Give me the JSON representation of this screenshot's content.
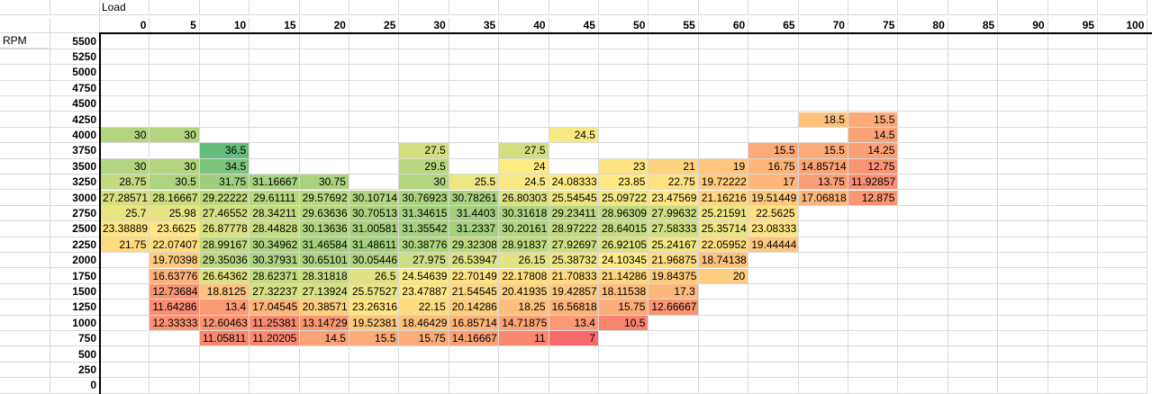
{
  "labels": {
    "load": "Load",
    "rpm": "RPM"
  },
  "load_values": [
    "0",
    "5",
    "10",
    "15",
    "20",
    "25",
    "30",
    "35",
    "40",
    "45",
    "50",
    "55",
    "60",
    "65",
    "70",
    "75",
    "80",
    "85",
    "90",
    "95",
    "100"
  ],
  "rpm_values": [
    "5500",
    "5250",
    "5000",
    "4750",
    "4500",
    "4250",
    "4000",
    "3750",
    "3500",
    "3250",
    "3000",
    "2750",
    "2500",
    "2250",
    "2000",
    "1750",
    "1500",
    "1250",
    "1000",
    "750",
    "500",
    "250",
    "0"
  ],
  "table": {
    "4250": {
      "70": "18.5",
      "75": "15.5"
    },
    "4000": {
      "0": "30",
      "5": "30",
      "45": "24.5",
      "75": "14.5"
    },
    "3750": {
      "10": "36.5",
      "30": "27.5",
      "40": "27.5",
      "65": "15.5",
      "70": "15.5",
      "75": "14.25"
    },
    "3500": {
      "0": "30",
      "5": "30",
      "10": "34.5",
      "30": "29.5",
      "40": "24",
      "50": "23",
      "55": "21",
      "60": "19",
      "65": "16.75",
      "70": "14.85714",
      "75": "12.75"
    },
    "3250": {
      "0": "28.75",
      "5": "30.5",
      "10": "31.75",
      "15": "31.16667",
      "20": "30.75",
      "30": "30",
      "35": "25.5",
      "40": "24.5",
      "45": "24.08333",
      "50": "23.85",
      "55": "22.75",
      "60": "19.72222",
      "65": "17",
      "70": "13.75",
      "75": "11.92857"
    },
    "3000": {
      "0": "27.28571",
      "5": "28.16667",
      "10": "29.22222",
      "15": "29.61111",
      "20": "29.57692",
      "25": "30.10714",
      "30": "30.76923",
      "35": "30.78261",
      "40": "26.80303",
      "45": "25.54545",
      "50": "25.09722",
      "55": "23.47569",
      "60": "21.16216",
      "65": "19.51449",
      "70": "17.06818",
      "75": "12.875"
    },
    "2750": {
      "0": "25.7",
      "5": "25.98",
      "10": "27.46552",
      "15": "28.34211",
      "20": "29.63636",
      "25": "30.70513",
      "30": "31.34615",
      "35": "31.4403",
      "40": "30.31618",
      "45": "29.23411",
      "50": "28.96309",
      "55": "27.99632",
      "60": "25.21591",
      "65": "22.5625"
    },
    "2500": {
      "0": "23.38889",
      "5": "23.6625",
      "10": "26.87778",
      "15": "28.44828",
      "20": "30.13636",
      "25": "31.00581",
      "30": "31.35542",
      "35": "31.2337",
      "40": "30.20161",
      "45": "28.97222",
      "50": "28.64015",
      "55": "27.58333",
      "60": "25.35714",
      "65": "23.08333"
    },
    "2250": {
      "0": "21.75",
      "5": "22.07407",
      "10": "28.99167",
      "15": "30.34962",
      "20": "31.46584",
      "25": "31.48611",
      "30": "30.38776",
      "35": "29.32308",
      "40": "28.91837",
      "45": "27.92697",
      "50": "26.92105",
      "55": "25.24167",
      "60": "22.05952",
      "65": "19.44444"
    },
    "2000": {
      "5": "19.70398",
      "10": "29.35036",
      "15": "30.37931",
      "20": "30.65101",
      "25": "30.05446",
      "30": "27.975",
      "35": "26.53947",
      "40": "26.15",
      "45": "25.38732",
      "50": "24.10345",
      "55": "21.96875",
      "60": "18.74138"
    },
    "1750": {
      "5": "16.63776",
      "10": "26.64362",
      "15": "28.62371",
      "20": "28.31818",
      "25": "26.5",
      "30": "24.54639",
      "35": "22.70149",
      "40": "22.17808",
      "45": "21.70833",
      "50": "21.14286",
      "55": "19.84375",
      "60": "20"
    },
    "1500": {
      "5": "12.73684",
      "10": "18.8125",
      "15": "27.32237",
      "20": "27.13924",
      "25": "25.57527",
      "30": "23.47887",
      "35": "21.54545",
      "40": "20.41935",
      "45": "19.42857",
      "50": "18.11538",
      "55": "17.3"
    },
    "1250": {
      "5": "11.64286",
      "10": "13.4",
      "15": "17.04545",
      "20": "20.38571",
      "25": "23.26316",
      "30": "22.15",
      "35": "20.14286",
      "40": "18.25",
      "45": "16.56818",
      "50": "15.75",
      "55": "12.66667"
    },
    "1000": {
      "5": "12.33333",
      "10": "12.60463",
      "15": "11.25381",
      "20": "13.14729",
      "25": "19.52381",
      "30": "18.46429",
      "35": "16.85714",
      "40": "14.71875",
      "45": "13.4",
      "50": "10.5"
    },
    "750": {
      "10": "11.05811",
      "15": "11.20205",
      "20": "14.5",
      "25": "15.5",
      "30": "15.75",
      "35": "14.16667",
      "40": "11",
      "45": "7"
    }
  },
  "color_scale": {
    "min": 7,
    "mid": 24,
    "max": 36.5,
    "min_color": "#f8696b",
    "mid_color": "#ffeb84",
    "max_color": "#63be7b"
  },
  "gridline_color": "#d9d9d9"
}
